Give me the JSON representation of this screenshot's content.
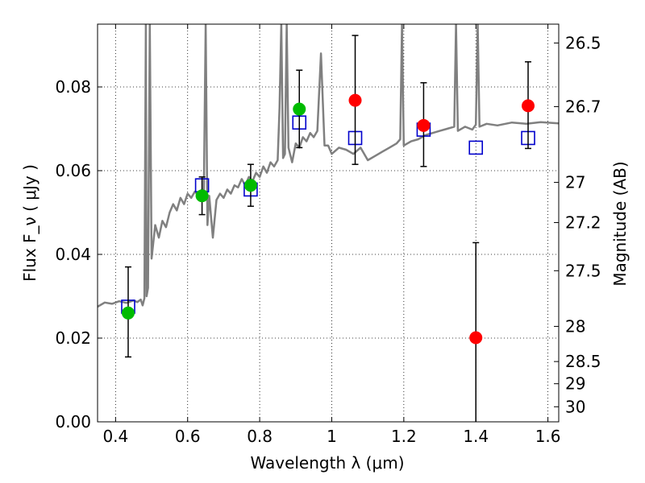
{
  "chart_data": {
    "type": "scatter",
    "xlabel": "Wavelength  λ (μm)",
    "ylabel": "Flux  F_ν  ( μJy )",
    "y2label": "Magnitude (AB)",
    "xlim": [
      0.35,
      1.63
    ],
    "ylim": [
      0.0,
      0.095
    ],
    "grid": true,
    "x_ticks": [
      0.4,
      0.6,
      0.8,
      1.0,
      1.2,
      1.4,
      1.6
    ],
    "x_tick_labels": [
      "0.4",
      "0.6",
      "0.8",
      "1",
      "1.2",
      "1.4",
      "1.6"
    ],
    "y_ticks": [
      0.0,
      0.02,
      0.04,
      0.06,
      0.08
    ],
    "y_tick_labels": [
      "0.00",
      "0.02",
      "0.04",
      "0.06",
      "0.08"
    ],
    "y2_ticks": [
      {
        "label": "26.5",
        "flux": 0.0905
      },
      {
        "label": "26.7",
        "flux": 0.0753
      },
      {
        "label": "27",
        "flux": 0.0572
      },
      {
        "label": "27.2",
        "flux": 0.0476
      },
      {
        "label": "27.5",
        "flux": 0.0361
      },
      {
        "label": "28",
        "flux": 0.0228
      },
      {
        "label": "28.5",
        "flux": 0.0144
      },
      {
        "label": "29",
        "flux": 0.0091
      },
      {
        "label": "30",
        "flux": 0.0036
      }
    ],
    "series": [
      {
        "marker": "open-square",
        "color": "#0000cc",
        "points": [
          {
            "x": 0.435,
            "y": 0.0275
          },
          {
            "x": 0.64,
            "y": 0.0565
          },
          {
            "x": 0.775,
            "y": 0.0555
          },
          {
            "x": 0.91,
            "y": 0.0715
          },
          {
            "x": 1.065,
            "y": 0.0678
          },
          {
            "x": 1.255,
            "y": 0.0698
          },
          {
            "x": 1.4,
            "y": 0.0655
          },
          {
            "x": 1.545,
            "y": 0.0678
          }
        ]
      },
      {
        "marker": "filled-circle",
        "color": "#00bb00",
        "points": [
          {
            "x": 0.435,
            "y": 0.026,
            "yerr_low": 0.0155,
            "yerr_high": 0.037
          },
          {
            "x": 0.64,
            "y": 0.054,
            "yerr_low": 0.0495,
            "yerr_high": 0.0585
          },
          {
            "x": 0.775,
            "y": 0.0565,
            "yerr_low": 0.0515,
            "yerr_high": 0.0615
          },
          {
            "x": 0.91,
            "y": 0.0747,
            "yerr_low": 0.0655,
            "yerr_high": 0.084
          }
        ]
      },
      {
        "marker": "filled-circle",
        "color": "#ff0000",
        "points": [
          {
            "x": 1.065,
            "y": 0.0768,
            "yerr_low": 0.0615,
            "yerr_high": 0.0923
          },
          {
            "x": 1.255,
            "y": 0.0708,
            "yerr_low": 0.061,
            "yerr_high": 0.081
          },
          {
            "x": 1.4,
            "y": 0.0201,
            "yerr_low": 0.0,
            "yerr_high": 0.0428
          },
          {
            "x": 1.545,
            "y": 0.0755,
            "yerr_low": 0.0653,
            "yerr_high": 0.086
          }
        ]
      }
    ],
    "spectrum": {
      "type": "line",
      "color": "#808080",
      "points": [
        [
          0.35,
          0.0275
        ],
        [
          0.37,
          0.0285
        ],
        [
          0.39,
          0.0282
        ],
        [
          0.41,
          0.0288
        ],
        [
          0.43,
          0.0284
        ],
        [
          0.45,
          0.029
        ],
        [
          0.46,
          0.0286
        ],
        [
          0.47,
          0.0292
        ],
        [
          0.475,
          0.0278
        ],
        [
          0.48,
          0.0295
        ],
        [
          0.484,
          0.095
        ],
        [
          0.486,
          0.03
        ],
        [
          0.49,
          0.032
        ],
        [
          0.495,
          0.095
        ],
        [
          0.5,
          0.039
        ],
        [
          0.51,
          0.047
        ],
        [
          0.52,
          0.044
        ],
        [
          0.53,
          0.048
        ],
        [
          0.54,
          0.0465
        ],
        [
          0.55,
          0.05
        ],
        [
          0.56,
          0.052
        ],
        [
          0.57,
          0.0505
        ],
        [
          0.58,
          0.0535
        ],
        [
          0.59,
          0.052
        ],
        [
          0.6,
          0.0545
        ],
        [
          0.61,
          0.0535
        ],
        [
          0.62,
          0.055
        ],
        [
          0.63,
          0.054
        ],
        [
          0.64,
          0.0555
        ],
        [
          0.645,
          0.0545
        ],
        [
          0.65,
          0.095
        ],
        [
          0.655,
          0.047
        ],
        [
          0.66,
          0.054
        ],
        [
          0.67,
          0.044
        ],
        [
          0.68,
          0.053
        ],
        [
          0.69,
          0.0545
        ],
        [
          0.7,
          0.0535
        ],
        [
          0.71,
          0.0555
        ],
        [
          0.72,
          0.0545
        ],
        [
          0.73,
          0.0565
        ],
        [
          0.74,
          0.056
        ],
        [
          0.75,
          0.058
        ],
        [
          0.76,
          0.0565
        ],
        [
          0.77,
          0.0585
        ],
        [
          0.78,
          0.0575
        ],
        [
          0.79,
          0.0595
        ],
        [
          0.8,
          0.0585
        ],
        [
          0.81,
          0.061
        ],
        [
          0.82,
          0.0595
        ],
        [
          0.83,
          0.062
        ],
        [
          0.84,
          0.061
        ],
        [
          0.85,
          0.0625
        ],
        [
          0.855,
          0.075
        ],
        [
          0.86,
          0.095
        ],
        [
          0.865,
          0.063
        ],
        [
          0.87,
          0.064
        ],
        [
          0.875,
          0.095
        ],
        [
          0.88,
          0.0655
        ],
        [
          0.89,
          0.062
        ],
        [
          0.9,
          0.0665
        ],
        [
          0.91,
          0.0655
        ],
        [
          0.92,
          0.068
        ],
        [
          0.93,
          0.067
        ],
        [
          0.94,
          0.069
        ],
        [
          0.95,
          0.068
        ],
        [
          0.96,
          0.0695
        ],
        [
          0.97,
          0.088
        ],
        [
          0.98,
          0.066
        ],
        [
          0.99,
          0.066
        ],
        [
          1.0,
          0.064
        ],
        [
          1.02,
          0.0655
        ],
        [
          1.04,
          0.065
        ],
        [
          1.06,
          0.064
        ],
        [
          1.08,
          0.0655
        ],
        [
          1.1,
          0.0625
        ],
        [
          1.12,
          0.0635
        ],
        [
          1.14,
          0.0645
        ],
        [
          1.16,
          0.0655
        ],
        [
          1.18,
          0.0665
        ],
        [
          1.19,
          0.0675
        ],
        [
          1.195,
          0.095
        ],
        [
          1.2,
          0.066
        ],
        [
          1.22,
          0.067
        ],
        [
          1.24,
          0.0675
        ],
        [
          1.26,
          0.0685
        ],
        [
          1.28,
          0.069
        ],
        [
          1.3,
          0.0695
        ],
        [
          1.32,
          0.07
        ],
        [
          1.34,
          0.0705
        ],
        [
          1.345,
          0.095
        ],
        [
          1.35,
          0.0695
        ],
        [
          1.37,
          0.0705
        ],
        [
          1.39,
          0.0698
        ],
        [
          1.4,
          0.071
        ],
        [
          1.405,
          0.095
        ],
        [
          1.41,
          0.0705
        ],
        [
          1.43,
          0.0712
        ],
        [
          1.46,
          0.0708
        ],
        [
          1.5,
          0.0715
        ],
        [
          1.54,
          0.0712
        ],
        [
          1.58,
          0.0716
        ],
        [
          1.63,
          0.0713
        ]
      ]
    }
  }
}
